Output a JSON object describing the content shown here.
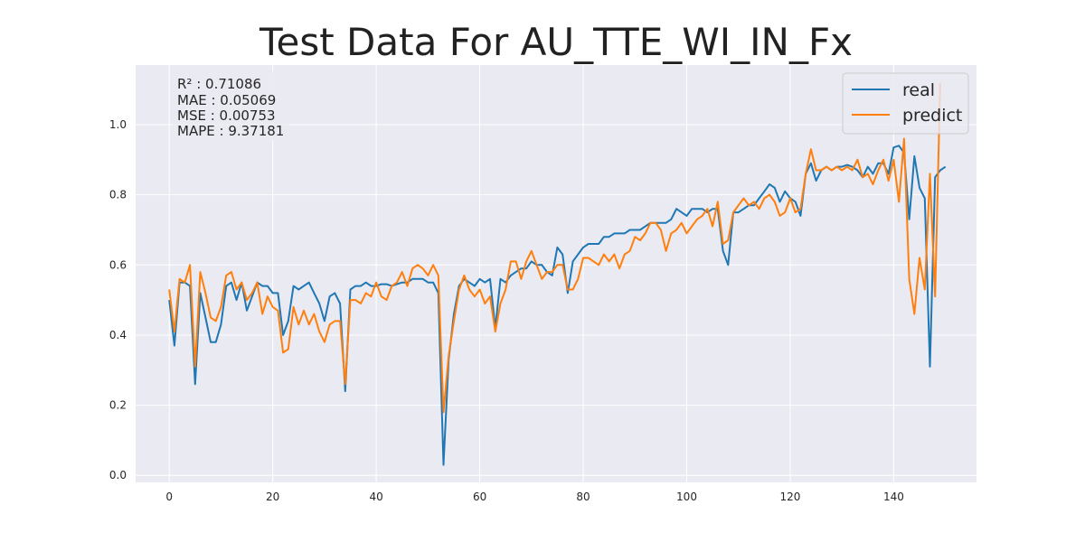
{
  "chart_data": {
    "type": "line",
    "title": "Test Data For AU_TTE_WI_IN_Fx",
    "xlabel": "",
    "ylabel": "",
    "xlim": [
      -6.5,
      156
    ],
    "ylim": [
      -0.02,
      1.17
    ],
    "xticks": [
      0,
      20,
      40,
      60,
      80,
      100,
      120,
      140
    ],
    "yticks": [
      0.0,
      0.2,
      0.4,
      0.6,
      0.8,
      1.0
    ],
    "xtick_labels": [
      "0",
      "20",
      "40",
      "60",
      "80",
      "100",
      "120",
      "140"
    ],
    "ytick_labels": [
      "0.0",
      "0.2",
      "0.4",
      "0.6",
      "0.8",
      "1.0"
    ],
    "grid": true,
    "legend_position": "top-right",
    "annotations": [
      "R² : 0.71086",
      "MAE : 0.05069",
      "MSE : 0.00753",
      "MAPE : 9.37181"
    ],
    "series": [
      {
        "name": "real",
        "color": "#1f77b4",
        "values": [
          0.5,
          0.37,
          0.55,
          0.55,
          0.54,
          0.26,
          0.52,
          0.45,
          0.38,
          0.38,
          0.43,
          0.54,
          0.55,
          0.5,
          0.55,
          0.47,
          0.51,
          0.55,
          0.54,
          0.54,
          0.52,
          0.52,
          0.4,
          0.44,
          0.54,
          0.53,
          0.54,
          0.55,
          0.52,
          0.49,
          0.44,
          0.51,
          0.52,
          0.49,
          0.24,
          0.53,
          0.54,
          0.54,
          0.55,
          0.54,
          0.54,
          0.545,
          0.545,
          0.54,
          0.545,
          0.55,
          0.55,
          0.56,
          0.56,
          0.56,
          0.55,
          0.55,
          0.52,
          0.03,
          0.33,
          0.46,
          0.54,
          0.56,
          0.55,
          0.54,
          0.56,
          0.55,
          0.56,
          0.42,
          0.56,
          0.55,
          0.57,
          0.58,
          0.59,
          0.59,
          0.61,
          0.6,
          0.6,
          0.58,
          0.57,
          0.65,
          0.63,
          0.52,
          0.61,
          0.63,
          0.65,
          0.66,
          0.66,
          0.66,
          0.68,
          0.68,
          0.69,
          0.69,
          0.69,
          0.7,
          0.7,
          0.7,
          0.71,
          0.72,
          0.72,
          0.72,
          0.72,
          0.73,
          0.76,
          0.75,
          0.74,
          0.76,
          0.76,
          0.76,
          0.75,
          0.76,
          0.76,
          0.64,
          0.6,
          0.75,
          0.75,
          0.76,
          0.77,
          0.77,
          0.79,
          0.81,
          0.83,
          0.82,
          0.78,
          0.81,
          0.79,
          0.78,
          0.74,
          0.86,
          0.89,
          0.84,
          0.87,
          0.88,
          0.87,
          0.88,
          0.88,
          0.885,
          0.88,
          0.87,
          0.85,
          0.88,
          0.86,
          0.89,
          0.89,
          0.86,
          0.935,
          0.94,
          0.92,
          0.73,
          0.91,
          0.82,
          0.79,
          0.31,
          0.85,
          0.87,
          0.88
        ]
      },
      {
        "name": "predict",
        "color": "#ff7f0e",
        "values": [
          0.53,
          0.41,
          0.56,
          0.55,
          0.6,
          0.31,
          0.58,
          0.52,
          0.45,
          0.44,
          0.48,
          0.57,
          0.58,
          0.53,
          0.55,
          0.5,
          0.52,
          0.55,
          0.46,
          0.51,
          0.48,
          0.47,
          0.35,
          0.36,
          0.48,
          0.43,
          0.47,
          0.43,
          0.46,
          0.41,
          0.38,
          0.43,
          0.44,
          0.44,
          0.26,
          0.5,
          0.5,
          0.49,
          0.52,
          0.51,
          0.55,
          0.51,
          0.5,
          0.54,
          0.55,
          0.58,
          0.54,
          0.59,
          0.6,
          0.59,
          0.57,
          0.6,
          0.57,
          0.18,
          0.34,
          0.44,
          0.53,
          0.57,
          0.53,
          0.51,
          0.53,
          0.49,
          0.51,
          0.41,
          0.49,
          0.53,
          0.61,
          0.61,
          0.56,
          0.61,
          0.64,
          0.6,
          0.56,
          0.58,
          0.58,
          0.6,
          0.6,
          0.53,
          0.53,
          0.56,
          0.62,
          0.62,
          0.61,
          0.6,
          0.63,
          0.61,
          0.63,
          0.59,
          0.63,
          0.64,
          0.68,
          0.67,
          0.69,
          0.72,
          0.72,
          0.7,
          0.64,
          0.69,
          0.7,
          0.72,
          0.69,
          0.71,
          0.73,
          0.74,
          0.76,
          0.71,
          0.78,
          0.66,
          0.67,
          0.75,
          0.77,
          0.79,
          0.77,
          0.78,
          0.76,
          0.79,
          0.8,
          0.78,
          0.74,
          0.75,
          0.79,
          0.75,
          0.76,
          0.86,
          0.93,
          0.87,
          0.87,
          0.88,
          0.87,
          0.88,
          0.87,
          0.88,
          0.87,
          0.9,
          0.85,
          0.86,
          0.83,
          0.87,
          0.9,
          0.84,
          0.9,
          0.78,
          0.96,
          0.56,
          0.46,
          0.62,
          0.53,
          0.86,
          0.51,
          1.12
        ]
      }
    ]
  }
}
